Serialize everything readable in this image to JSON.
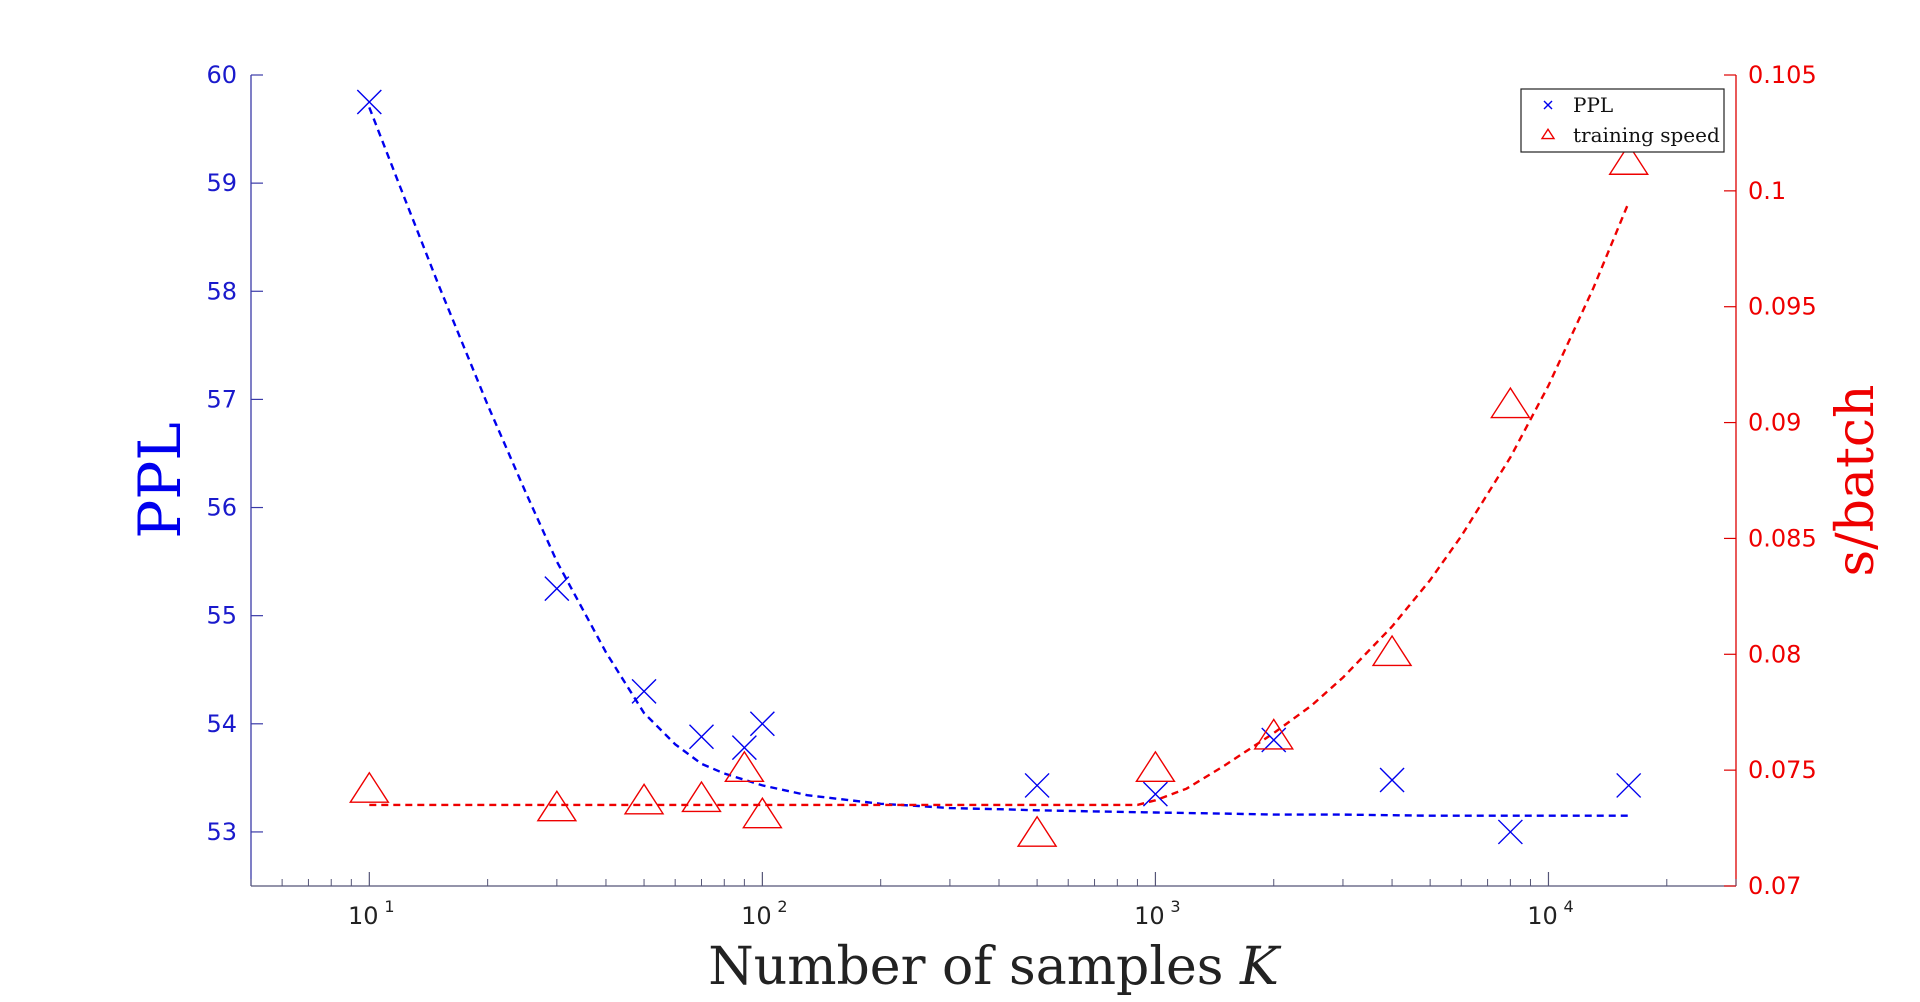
{
  "chart_data": {
    "type": "scatter",
    "xlabel": "Number of samples K",
    "ylabel_left": "PPL",
    "ylabel_right": "s/batch",
    "x_scale": "log",
    "xlim": [
      5,
      30000
    ],
    "x_ticks": [
      10,
      100,
      1000,
      10000
    ],
    "x_tick_labels": [
      {
        "base": "10",
        "exp": "1"
      },
      {
        "base": "10",
        "exp": "2"
      },
      {
        "base": "10",
        "exp": "3"
      },
      {
        "base": "10",
        "exp": "4"
      }
    ],
    "ylim_left": [
      52.5,
      60
    ],
    "y_ticks_left": [
      53,
      54,
      55,
      56,
      57,
      58,
      59,
      60
    ],
    "ylim_right": [
      0.07,
      0.105
    ],
    "y_ticks_right": [
      0.07,
      0.075,
      0.08,
      0.085,
      0.09,
      0.095,
      0.1,
      0.105
    ],
    "y_tick_labels_right": [
      "0.07",
      "0.075",
      "0.08",
      "0.085",
      "0.09",
      "0.095",
      "0.1",
      "0.105"
    ],
    "grid": false,
    "legend_position": "top-right",
    "series": [
      {
        "name": "PPL",
        "axis": "left",
        "marker": "x",
        "color": "#0000ee",
        "x": [
          10,
          30,
          50,
          70,
          90,
          100,
          500,
          1000,
          2000,
          4000,
          8000,
          16000
        ],
        "y": [
          59.75,
          55.25,
          54.3,
          53.88,
          53.78,
          54.0,
          53.43,
          53.35,
          53.85,
          53.48,
          53.0,
          53.43
        ]
      },
      {
        "name": "training speed",
        "axis": "right",
        "marker": "triangle",
        "color": "#ee0000",
        "x": [
          10,
          30,
          50,
          70,
          90,
          100,
          500,
          1000,
          2000,
          4000,
          8000,
          16000
        ],
        "y": [
          0.0741,
          0.0733,
          0.0736,
          0.0737,
          0.075,
          0.073,
          0.0722,
          0.075,
          0.0764,
          0.08,
          0.0907,
          0.1012
        ]
      }
    ],
    "fits": [
      {
        "series": "PPL",
        "axis": "left",
        "style": "dashed",
        "color": "#0000ee",
        "x": [
          10,
          12,
          15,
          20,
          25,
          30,
          40,
          50,
          60,
          70,
          80,
          100,
          130,
          170,
          200,
          250,
          300,
          400,
          500,
          700,
          1000,
          1500,
          2000,
          3000,
          5000,
          8000,
          12000,
          16000
        ],
        "y": [
          59.7,
          58.96,
          58.06,
          56.95,
          56.14,
          55.5,
          54.66,
          54.1,
          53.81,
          53.63,
          53.54,
          53.43,
          53.34,
          53.29,
          53.26,
          53.24,
          53.22,
          53.21,
          53.2,
          53.19,
          53.18,
          53.17,
          53.16,
          53.16,
          53.15,
          53.15,
          53.15,
          53.15
        ]
      },
      {
        "series": "training speed",
        "axis": "right",
        "style": "dashed",
        "color": "#ee0000",
        "x": [
          10,
          30,
          100,
          300,
          700,
          900,
          1000,
          1200,
          1500,
          2000,
          2500,
          3000,
          4000,
          5000,
          6000,
          8000,
          10000,
          13000,
          16000
        ],
        "y": [
          0.0735,
          0.0735,
          0.0735,
          0.0735,
          0.0735,
          0.0735,
          0.0737,
          0.0742,
          0.0752,
          0.0766,
          0.0778,
          0.079,
          0.0812,
          0.0832,
          0.0851,
          0.0885,
          0.0916,
          0.0958,
          0.0995
        ]
      }
    ]
  }
}
